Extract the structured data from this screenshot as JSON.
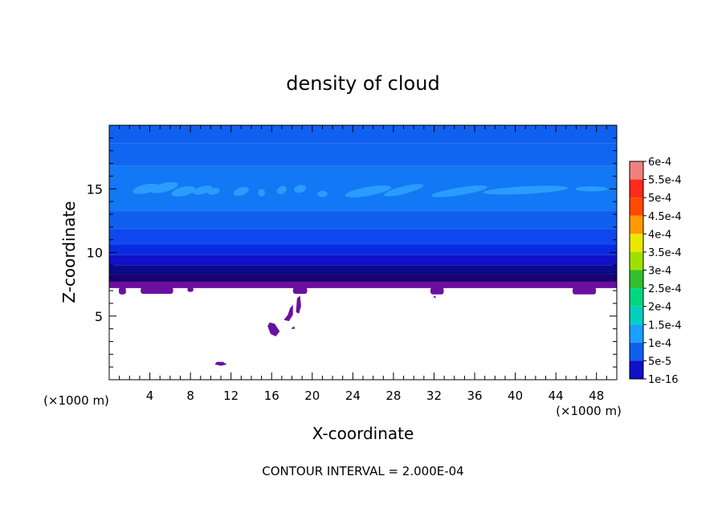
{
  "chart_data": {
    "type": "heatmap",
    "title": "density of cloud",
    "xlabel": "X-coordinate",
    "ylabel": "Z-coordinate",
    "x_unit": "(×1000 m)",
    "x_unit_right": "(×1000 m)",
    "xlim": [
      0,
      50
    ],
    "ylim": [
      0,
      20
    ],
    "x_ticks": [
      4,
      8,
      12,
      16,
      20,
      24,
      28,
      32,
      36,
      40,
      44,
      48
    ],
    "y_ticks": [
      5,
      10,
      15
    ],
    "grid": false,
    "footer": "CONTOUR INTERVAL = 2.000E-04",
    "colorbar": {
      "labels": [
        "6e-4",
        "5.5e-4",
        "5e-4",
        "4.5e-4",
        "4e-4",
        "3.5e-4",
        "3e-4",
        "2.5e-4",
        "2e-4",
        "1.5e-4",
        "1e-4",
        "5e-5",
        "1e-16"
      ],
      "values": [
        0.0006,
        0.00055,
        0.0005,
        0.00045,
        0.0004,
        0.00035,
        0.0003,
        0.00025,
        0.0002,
        0.00015,
        0.0001,
        5e-05,
        1e-16
      ],
      "colors": [
        "#f08080",
        "#ff2a1a",
        "#ff4a00",
        "#ff9a00",
        "#e8e800",
        "#a0e000",
        "#30c030",
        "#00d880",
        "#00d0c0",
        "#1aa0ff",
        "#1060f0",
        "#1010c8",
        "#6a10a0"
      ]
    },
    "fields": {
      "cloud_base_z": 7.2,
      "cloud_layers": [
        {
          "z0": 7.2,
          "z1": 7.7,
          "value": 1e-16,
          "color": "#6a10a0"
        },
        {
          "z0": 7.7,
          "z1": 8.3,
          "value": 1e-05,
          "color": "#1a0070"
        },
        {
          "z0": 8.3,
          "z1": 9.0,
          "value": 3e-05,
          "color": "#0a0a8a"
        },
        {
          "z0": 9.0,
          "z1": 9.8,
          "value": 5e-05,
          "color": "#1010c8"
        },
        {
          "z0": 9.8,
          "z1": 10.6,
          "value": 7e-05,
          "color": "#0a2ae0"
        },
        {
          "z0": 10.6,
          "z1": 11.8,
          "value": 9e-05,
          "color": "#0f48ee"
        },
        {
          "z0": 11.8,
          "z1": 13.3,
          "value": 0.0001,
          "color": "#1060f0"
        },
        {
          "z0": 13.3,
          "z1": 16.8,
          "value": 0.00012,
          "color": "#1278f5"
        },
        {
          "z0": 16.8,
          "z1": 18.6,
          "value": 0.00011,
          "color": "#1066f0"
        },
        {
          "z0": 18.6,
          "z1": 20.0,
          "value": 0.0001,
          "color": "#1060f0"
        }
      ],
      "high_patches_color": "#2a9cff",
      "high_patches": [
        {
          "cx": 3.6,
          "cz": 15.0,
          "rx": 1.3,
          "rz": 0.35,
          "rot": -12
        },
        {
          "cx": 5.4,
          "cz": 15.1,
          "rx": 1.4,
          "rz": 0.35,
          "rot": -14
        },
        {
          "cx": 7.3,
          "cz": 14.8,
          "rx": 1.2,
          "rz": 0.35,
          "rot": -14
        },
        {
          "cx": 9.2,
          "cz": 14.9,
          "rx": 1.0,
          "rz": 0.3,
          "rot": -15
        },
        {
          "cx": 10.3,
          "cz": 14.8,
          "rx": 0.6,
          "rz": 0.25,
          "rot": -15
        },
        {
          "cx": 13.0,
          "cz": 14.8,
          "rx": 0.8,
          "rz": 0.3,
          "rot": -20
        },
        {
          "cx": 15.0,
          "cz": 14.7,
          "rx": 0.35,
          "rz": 0.3,
          "rot": 0
        },
        {
          "cx": 17.0,
          "cz": 14.9,
          "rx": 0.5,
          "rz": 0.3,
          "rot": -30
        },
        {
          "cx": 18.8,
          "cz": 15.0,
          "rx": 0.6,
          "rz": 0.3,
          "rot": -10
        },
        {
          "cx": 21.0,
          "cz": 14.6,
          "rx": 0.5,
          "rz": 0.25,
          "rot": 0
        },
        {
          "cx": 25.5,
          "cz": 14.8,
          "rx": 2.3,
          "rz": 0.35,
          "rot": -10
        },
        {
          "cx": 29.0,
          "cz": 14.9,
          "rx": 2.0,
          "rz": 0.3,
          "rot": -14
        },
        {
          "cx": 34.5,
          "cz": 14.8,
          "rx": 2.8,
          "rz": 0.3,
          "rot": -9
        },
        {
          "cx": 41.0,
          "cz": 14.9,
          "rx": 4.2,
          "rz": 0.3,
          "rot": -3
        },
        {
          "cx": 47.5,
          "cz": 15.0,
          "rx": 1.6,
          "rz": 0.2,
          "rot": 0
        }
      ],
      "base_bumps": [
        {
          "x": 1.3,
          "w": 0.7,
          "d": 0.5
        },
        {
          "x": 4.7,
          "w": 3.2,
          "d": 0.45
        },
        {
          "x": 8.0,
          "w": 0.6,
          "d": 0.3
        },
        {
          "x": 18.8,
          "w": 1.4,
          "d": 0.45
        },
        {
          "x": 32.3,
          "w": 1.3,
          "d": 0.5
        },
        {
          "x": 46.8,
          "w": 2.3,
          "d": 0.5
        }
      ],
      "low_blobs": [
        {
          "points": [
            [
              10.4,
              1.2
            ],
            [
              10.6,
              1.4
            ],
            [
              11.2,
              1.4
            ],
            [
              11.6,
              1.2
            ],
            [
              11.0,
              1.1
            ]
          ]
        },
        {
          "points": [
            [
              15.6,
              4.2
            ],
            [
              15.8,
              4.5
            ],
            [
              16.3,
              4.4
            ],
            [
              16.8,
              3.8
            ],
            [
              16.4,
              3.4
            ],
            [
              15.9,
              3.6
            ]
          ]
        },
        {
          "points": [
            [
              17.2,
              4.7
            ],
            [
              17.6,
              5.1
            ],
            [
              17.8,
              5.6
            ],
            [
              18.1,
              5.9
            ],
            [
              18.1,
              5.1
            ],
            [
              17.7,
              4.6
            ]
          ]
        },
        {
          "points": [
            [
              18.4,
              5.3
            ],
            [
              18.5,
              6.4
            ],
            [
              18.8,
              6.6
            ],
            [
              18.9,
              5.8
            ],
            [
              18.7,
              5.2
            ]
          ]
        },
        {
          "points": [
            [
              17.9,
              4.0
            ],
            [
              18.2,
              4.2
            ],
            [
              18.3,
              4.0
            ]
          ]
        },
        {
          "points": [
            [
              31.9,
              6.5
            ],
            [
              32.1,
              6.6
            ],
            [
              32.2,
              6.4
            ]
          ]
        }
      ]
    }
  }
}
